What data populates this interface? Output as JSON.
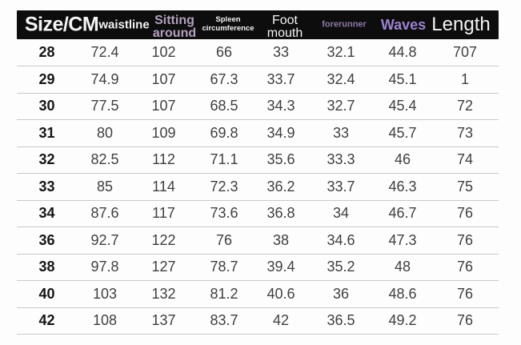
{
  "colors": {
    "bg": "#fdfdfd",
    "header-bg": "#0d0d0d",
    "header-text": "#f4f4f4",
    "purple-soft": "#b2a0bd",
    "purple-muted": "#8f79a9",
    "purple-strong": "#9c82cf",
    "row-text": "#3f3f3f",
    "size-text": "#151515",
    "divider": "#c9c9c9"
  },
  "chart_data": {
    "type": "table",
    "title": "",
    "legend": "none",
    "grid": "horizontal row dividers only",
    "columns": [
      {
        "id": "size",
        "label": "Size/CM"
      },
      {
        "id": "waistline",
        "label": "waistline"
      },
      {
        "id": "sitting",
        "label": "Sitting\naround"
      },
      {
        "id": "spleen",
        "label": "Spleen\ncircumference"
      },
      {
        "id": "foot",
        "label": "Foot\nmouth"
      },
      {
        "id": "forerunner",
        "label": "forerunner"
      },
      {
        "id": "waves",
        "label": "Waves"
      },
      {
        "id": "length",
        "label": "Length"
      }
    ],
    "rows": [
      [
        "28",
        "72.4",
        "102",
        "66",
        "33",
        "32.1",
        "44.8",
        "707"
      ],
      [
        "29",
        "74.9",
        "107",
        "67.3",
        "33.7",
        "32.4",
        "45.1",
        "1"
      ],
      [
        "30",
        "77.5",
        "107",
        "68.5",
        "34.3",
        "32.7",
        "45.4",
        "72"
      ],
      [
        "31",
        "80",
        "109",
        "69.8",
        "34.9",
        "33",
        "45.7",
        "73"
      ],
      [
        "32",
        "82.5",
        "112",
        "71.1",
        "35.6",
        "33.3",
        "46",
        "74"
      ],
      [
        "33",
        "85",
        "114",
        "72.3",
        "36.2",
        "33.7",
        "46.3",
        "75"
      ],
      [
        "34",
        "87.6",
        "117",
        "73.6",
        "36.8",
        "34",
        "46.7",
        "76"
      ],
      [
        "36",
        "92.7",
        "122",
        "76",
        "38",
        "34.6",
        "47.3",
        "76"
      ],
      [
        "38",
        "97.8",
        "127",
        "78.7",
        "39.4",
        "35.2",
        "48",
        "76"
      ],
      [
        "40",
        "103",
        "132",
        "81.2",
        "40.6",
        "36",
        "48.6",
        "76"
      ],
      [
        "42",
        "108",
        "137",
        "83.7",
        "42",
        "36.5",
        "49.2",
        "76"
      ]
    ]
  }
}
